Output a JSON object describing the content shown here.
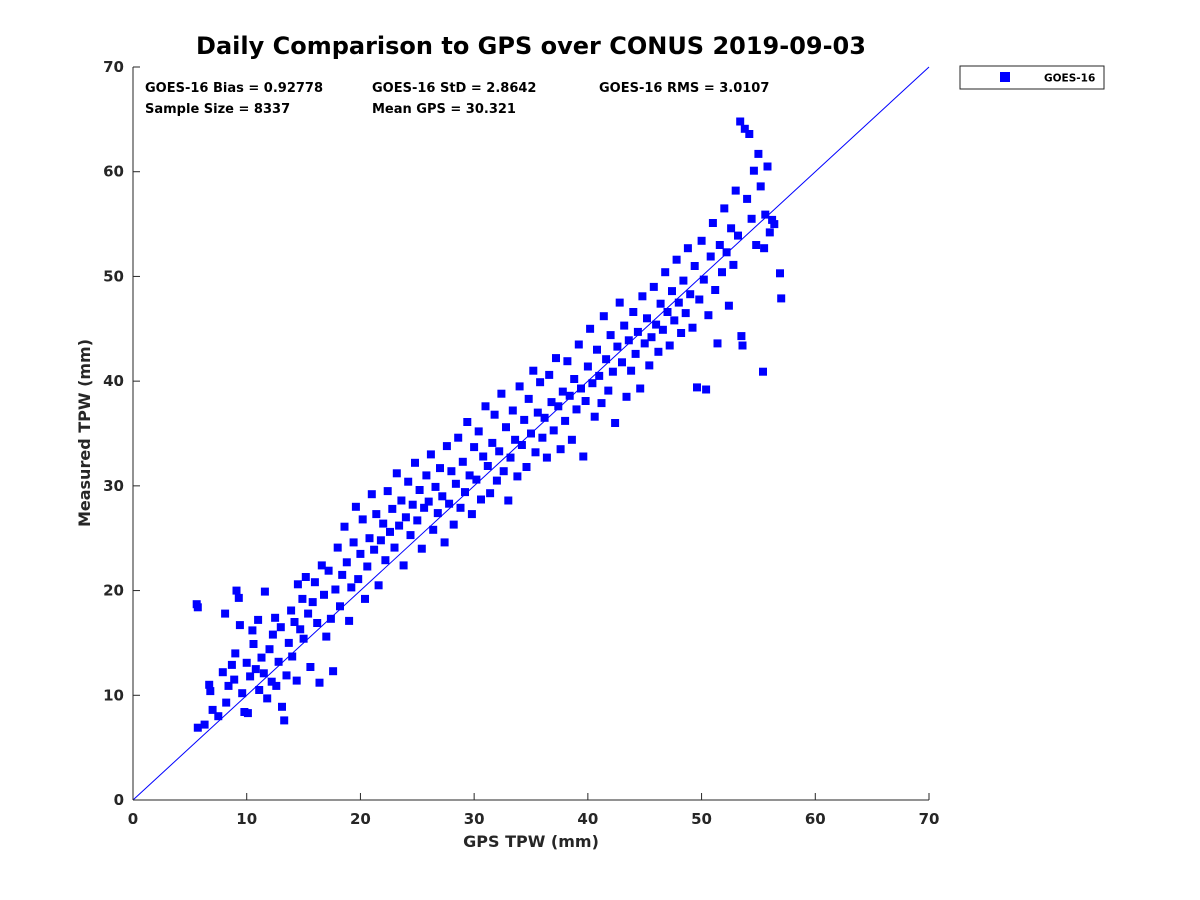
{
  "chart_data": {
    "type": "scatter",
    "title": "Daily Comparison to GPS over CONUS 2019-09-03",
    "xlabel": "GPS TPW (mm)",
    "ylabel": "Measured TPW (mm)",
    "xlim": [
      0,
      70
    ],
    "ylim": [
      0,
      70
    ],
    "x_ticks": [
      "0",
      "10",
      "20",
      "30",
      "40",
      "50",
      "60",
      "70"
    ],
    "y_ticks": [
      "0",
      "10",
      "20",
      "30",
      "40",
      "50",
      "60",
      "70"
    ],
    "grid": false,
    "legend": {
      "position": "top-right outside",
      "entries": [
        "GOES-16"
      ]
    },
    "reference_line": {
      "name": "1:1 line",
      "from": [
        0,
        0
      ],
      "to": [
        70,
        70
      ],
      "color": "#0000ff"
    },
    "stats": {
      "bias": "GOES-16 Bias = 0.92778",
      "std": "GOES-16 StD = 2.8642",
      "rms": "GOES-16 RMS = 3.0107",
      "sample_size": "Sample Size = 8337",
      "mean_gps": "Mean GPS = 30.321"
    },
    "marker_color": "#0000ff",
    "series": [
      {
        "name": "GOES-16",
        "points": [
          [
            5.6,
            18.7
          ],
          [
            5.7,
            18.4
          ],
          [
            5.7,
            6.9
          ],
          [
            6.3,
            7.2
          ],
          [
            6.7,
            11.0
          ],
          [
            6.8,
            10.4
          ],
          [
            7.0,
            8.6
          ],
          [
            7.5,
            8.0
          ],
          [
            7.9,
            12.2
          ],
          [
            8.1,
            17.8
          ],
          [
            8.2,
            9.3
          ],
          [
            8.4,
            10.9
          ],
          [
            8.7,
            12.9
          ],
          [
            8.9,
            11.5
          ],
          [
            9.0,
            14.0
          ],
          [
            9.1,
            20.0
          ],
          [
            9.3,
            19.3
          ],
          [
            9.4,
            16.7
          ],
          [
            9.6,
            10.2
          ],
          [
            9.8,
            8.4
          ],
          [
            10.0,
            13.1
          ],
          [
            10.1,
            8.3
          ],
          [
            10.3,
            11.8
          ],
          [
            10.5,
            16.2
          ],
          [
            10.6,
            14.9
          ],
          [
            10.8,
            12.5
          ],
          [
            11.0,
            17.2
          ],
          [
            11.1,
            10.5
          ],
          [
            11.3,
            13.6
          ],
          [
            11.5,
            12.1
          ],
          [
            11.6,
            19.9
          ],
          [
            11.8,
            9.7
          ],
          [
            12.0,
            14.4
          ],
          [
            12.2,
            11.3
          ],
          [
            12.3,
            15.8
          ],
          [
            12.5,
            17.4
          ],
          [
            12.6,
            10.9
          ],
          [
            12.8,
            13.2
          ],
          [
            13.0,
            16.5
          ],
          [
            13.1,
            8.9
          ],
          [
            13.3,
            7.6
          ],
          [
            13.5,
            11.9
          ],
          [
            13.7,
            15.0
          ],
          [
            13.9,
            18.1
          ],
          [
            14.0,
            13.7
          ],
          [
            14.2,
            17.0
          ],
          [
            14.4,
            11.4
          ],
          [
            14.5,
            20.6
          ],
          [
            14.7,
            16.3
          ],
          [
            14.9,
            19.2
          ],
          [
            15.0,
            15.4
          ],
          [
            15.2,
            21.3
          ],
          [
            15.4,
            17.8
          ],
          [
            15.6,
            12.7
          ],
          [
            15.8,
            18.9
          ],
          [
            16.0,
            20.8
          ],
          [
            16.2,
            16.9
          ],
          [
            16.4,
            11.2
          ],
          [
            16.6,
            22.4
          ],
          [
            16.8,
            19.6
          ],
          [
            17.0,
            15.6
          ],
          [
            17.2,
            21.9
          ],
          [
            17.4,
            17.3
          ],
          [
            17.6,
            12.3
          ],
          [
            17.8,
            20.1
          ],
          [
            18.0,
            24.1
          ],
          [
            18.2,
            18.5
          ],
          [
            18.4,
            21.5
          ],
          [
            18.6,
            26.1
          ],
          [
            18.8,
            22.7
          ],
          [
            19.0,
            17.1
          ],
          [
            19.2,
            20.3
          ],
          [
            19.4,
            24.6
          ],
          [
            19.6,
            28.0
          ],
          [
            19.8,
            21.1
          ],
          [
            20.0,
            23.5
          ],
          [
            20.2,
            26.8
          ],
          [
            20.4,
            19.2
          ],
          [
            20.6,
            22.3
          ],
          [
            20.8,
            25.0
          ],
          [
            21.0,
            29.2
          ],
          [
            21.2,
            23.9
          ],
          [
            21.4,
            27.3
          ],
          [
            21.6,
            20.5
          ],
          [
            21.8,
            24.8
          ],
          [
            22.0,
            26.4
          ],
          [
            22.2,
            22.9
          ],
          [
            22.4,
            29.5
          ],
          [
            22.6,
            25.6
          ],
          [
            22.8,
            27.8
          ],
          [
            23.0,
            24.1
          ],
          [
            23.2,
            31.2
          ],
          [
            23.4,
            26.2
          ],
          [
            23.6,
            28.6
          ],
          [
            23.8,
            22.4
          ],
          [
            24.0,
            27.0
          ],
          [
            24.2,
            30.4
          ],
          [
            24.4,
            25.3
          ],
          [
            24.6,
            28.2
          ],
          [
            24.8,
            32.2
          ],
          [
            25.0,
            26.7
          ],
          [
            25.2,
            29.6
          ],
          [
            25.4,
            24.0
          ],
          [
            25.6,
            27.9
          ],
          [
            25.8,
            31.0
          ],
          [
            26.0,
            28.5
          ],
          [
            26.2,
            33.0
          ],
          [
            26.4,
            25.8
          ],
          [
            26.6,
            29.9
          ],
          [
            26.8,
            27.4
          ],
          [
            27.0,
            31.7
          ],
          [
            27.2,
            29.0
          ],
          [
            27.4,
            24.6
          ],
          [
            27.6,
            33.8
          ],
          [
            27.8,
            28.3
          ],
          [
            28.0,
            31.4
          ],
          [
            28.2,
            26.3
          ],
          [
            28.4,
            30.2
          ],
          [
            28.6,
            34.6
          ],
          [
            28.8,
            27.9
          ],
          [
            29.0,
            32.3
          ],
          [
            29.2,
            29.4
          ],
          [
            29.4,
            36.1
          ],
          [
            29.6,
            31.0
          ],
          [
            29.8,
            27.3
          ],
          [
            30.0,
            33.7
          ],
          [
            30.2,
            30.6
          ],
          [
            30.4,
            35.2
          ],
          [
            30.6,
            28.7
          ],
          [
            30.8,
            32.8
          ],
          [
            31.0,
            37.6
          ],
          [
            31.2,
            31.9
          ],
          [
            31.4,
            29.3
          ],
          [
            31.6,
            34.1
          ],
          [
            31.8,
            36.8
          ],
          [
            32.0,
            30.5
          ],
          [
            32.2,
            33.3
          ],
          [
            32.4,
            38.8
          ],
          [
            32.6,
            31.4
          ],
          [
            32.8,
            35.6
          ],
          [
            33.0,
            28.6
          ],
          [
            33.2,
            32.7
          ],
          [
            33.4,
            37.2
          ],
          [
            33.6,
            34.4
          ],
          [
            33.8,
            30.9
          ],
          [
            34.0,
            39.5
          ],
          [
            34.2,
            33.9
          ],
          [
            34.4,
            36.3
          ],
          [
            34.6,
            31.8
          ],
          [
            34.8,
            38.3
          ],
          [
            35.0,
            35.0
          ],
          [
            35.2,
            41.0
          ],
          [
            35.4,
            33.2
          ],
          [
            35.6,
            37.0
          ],
          [
            35.8,
            39.9
          ],
          [
            36.0,
            34.6
          ],
          [
            36.2,
            36.5
          ],
          [
            36.4,
            32.7
          ],
          [
            36.6,
            40.6
          ],
          [
            36.8,
            38.0
          ],
          [
            37.0,
            35.3
          ],
          [
            37.2,
            42.2
          ],
          [
            37.4,
            37.6
          ],
          [
            37.6,
            33.5
          ],
          [
            37.8,
            39.0
          ],
          [
            38.0,
            36.2
          ],
          [
            38.2,
            41.9
          ],
          [
            38.4,
            38.6
          ],
          [
            38.6,
            34.4
          ],
          [
            38.8,
            40.2
          ],
          [
            39.0,
            37.3
          ],
          [
            39.2,
            43.5
          ],
          [
            39.4,
            39.3
          ],
          [
            39.6,
            32.8
          ],
          [
            39.8,
            38.1
          ],
          [
            40.0,
            41.4
          ],
          [
            40.2,
            45.0
          ],
          [
            40.4,
            39.8
          ],
          [
            40.6,
            36.6
          ],
          [
            40.8,
            43.0
          ],
          [
            41.0,
            40.5
          ],
          [
            41.2,
            37.9
          ],
          [
            41.4,
            46.2
          ],
          [
            41.6,
            42.1
          ],
          [
            41.8,
            39.1
          ],
          [
            42.0,
            44.4
          ],
          [
            42.2,
            40.9
          ],
          [
            42.4,
            36.0
          ],
          [
            42.6,
            43.3
          ],
          [
            42.8,
            47.5
          ],
          [
            43.0,
            41.8
          ],
          [
            43.2,
            45.3
          ],
          [
            43.4,
            38.5
          ],
          [
            43.6,
            43.9
          ],
          [
            43.8,
            41.0
          ],
          [
            44.0,
            46.6
          ],
          [
            44.2,
            42.6
          ],
          [
            44.4,
            44.7
          ],
          [
            44.6,
            39.3
          ],
          [
            44.8,
            48.1
          ],
          [
            45.0,
            43.6
          ],
          [
            45.2,
            46.0
          ],
          [
            45.4,
            41.5
          ],
          [
            45.6,
            44.2
          ],
          [
            45.8,
            49.0
          ],
          [
            46.0,
            45.4
          ],
          [
            46.2,
            42.8
          ],
          [
            46.4,
            47.4
          ],
          [
            46.6,
            44.9
          ],
          [
            46.8,
            50.4
          ],
          [
            47.0,
            46.6
          ],
          [
            47.2,
            43.4
          ],
          [
            47.4,
            48.6
          ],
          [
            47.6,
            45.8
          ],
          [
            47.8,
            51.6
          ],
          [
            48.0,
            47.5
          ],
          [
            48.2,
            44.6
          ],
          [
            48.4,
            49.6
          ],
          [
            48.6,
            46.5
          ],
          [
            48.8,
            52.7
          ],
          [
            49.0,
            48.3
          ],
          [
            49.2,
            45.1
          ],
          [
            49.4,
            51.0
          ],
          [
            49.6,
            39.4
          ],
          [
            49.8,
            47.8
          ],
          [
            50.0,
            53.4
          ],
          [
            50.2,
            49.7
          ],
          [
            50.4,
            39.2
          ],
          [
            50.6,
            46.3
          ],
          [
            50.8,
            51.9
          ],
          [
            51.0,
            55.1
          ],
          [
            51.2,
            48.7
          ],
          [
            51.4,
            43.6
          ],
          [
            51.6,
            53.0
          ],
          [
            51.8,
            50.4
          ],
          [
            52.0,
            56.5
          ],
          [
            52.2,
            52.3
          ],
          [
            52.4,
            47.2
          ],
          [
            52.6,
            54.6
          ],
          [
            52.8,
            51.1
          ],
          [
            53.0,
            58.2
          ],
          [
            53.2,
            53.9
          ],
          [
            53.4,
            64.8
          ],
          [
            53.5,
            44.3
          ],
          [
            53.6,
            43.4
          ],
          [
            53.8,
            64.1
          ],
          [
            54.0,
            57.4
          ],
          [
            54.2,
            63.6
          ],
          [
            54.4,
            55.5
          ],
          [
            54.6,
            60.1
          ],
          [
            54.8,
            53.0
          ],
          [
            55.0,
            61.7
          ],
          [
            55.2,
            58.6
          ],
          [
            55.4,
            40.9
          ],
          [
            55.5,
            52.7
          ],
          [
            55.6,
            55.9
          ],
          [
            55.8,
            60.5
          ],
          [
            56.0,
            54.2
          ],
          [
            56.2,
            55.4
          ],
          [
            56.4,
            55.0
          ],
          [
            56.9,
            50.3
          ],
          [
            57.0,
            47.9
          ]
        ]
      }
    ]
  }
}
